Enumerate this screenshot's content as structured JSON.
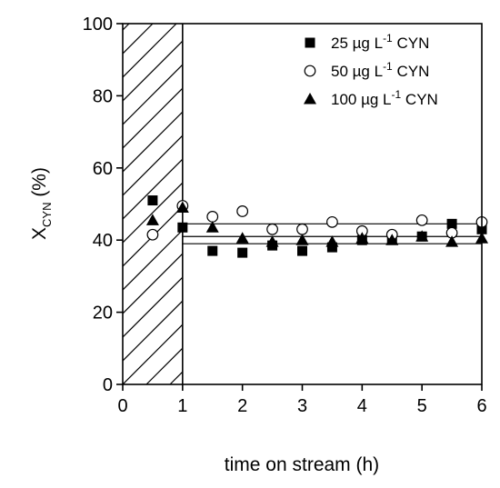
{
  "chart_data": {
    "type": "scatter",
    "title": "",
    "xlabel": "time on stream (h)",
    "ylabel": {
      "main": "X",
      "sub": "CYN",
      "rest": " (%)"
    },
    "xlim": [
      0,
      6
    ],
    "ylim": [
      0,
      100
    ],
    "xticks": [
      0,
      1,
      2,
      3,
      4,
      5,
      6
    ],
    "yticks": [
      0,
      20,
      40,
      60,
      80,
      100
    ],
    "grid": false,
    "legend_position": "top-right",
    "hatched_region": {
      "x_from": 0,
      "x_to": 1
    },
    "series": [
      {
        "name": "25 µg L-1 CYN",
        "legend": {
          "prefix": "25 µg L",
          "sup": "-1",
          "suffix": " CYN"
        },
        "marker": "filled-square",
        "x": [
          0.5,
          1.0,
          1.5,
          2.0,
          2.5,
          3.0,
          3.5,
          4.0,
          4.5,
          5.0,
          5.5,
          6.0
        ],
        "y": [
          51,
          43.5,
          37,
          36.5,
          38.5,
          37,
          38,
          40,
          40.5,
          41,
          44.5,
          43
        ],
        "fit_line": {
          "x_from": 1,
          "x_to": 6,
          "y": 41
        }
      },
      {
        "name": "50 µg L-1 CYN",
        "legend": {
          "prefix": "50 µg L",
          "sup": "-1",
          "suffix": " CYN"
        },
        "marker": "open-circle",
        "x": [
          0.5,
          1.0,
          1.5,
          2.0,
          2.5,
          3.0,
          3.5,
          4.0,
          4.5,
          5.0,
          5.5,
          6.0
        ],
        "y": [
          41.5,
          49.5,
          46.5,
          48,
          43,
          43,
          45,
          42.5,
          41.5,
          45.5,
          42,
          45
        ],
        "fit_line": {
          "x_from": 1,
          "x_to": 6,
          "y": 44.5
        }
      },
      {
        "name": "100 µg L-1 CYN",
        "legend": {
          "prefix": "100 µg L",
          "sup": "-1",
          "suffix": " CYN"
        },
        "marker": "filled-triangle",
        "x": [
          0.5,
          1.0,
          1.5,
          2.0,
          2.5,
          3.0,
          3.5,
          4.0,
          4.5,
          5.0,
          5.5,
          6.0
        ],
        "y": [
          45.5,
          49,
          43.5,
          40.5,
          39.5,
          40,
          39.5,
          40.5,
          40,
          41,
          39.5,
          40.5
        ],
        "fit_line": {
          "x_from": 1,
          "x_to": 6,
          "y": 39
        }
      }
    ]
  }
}
